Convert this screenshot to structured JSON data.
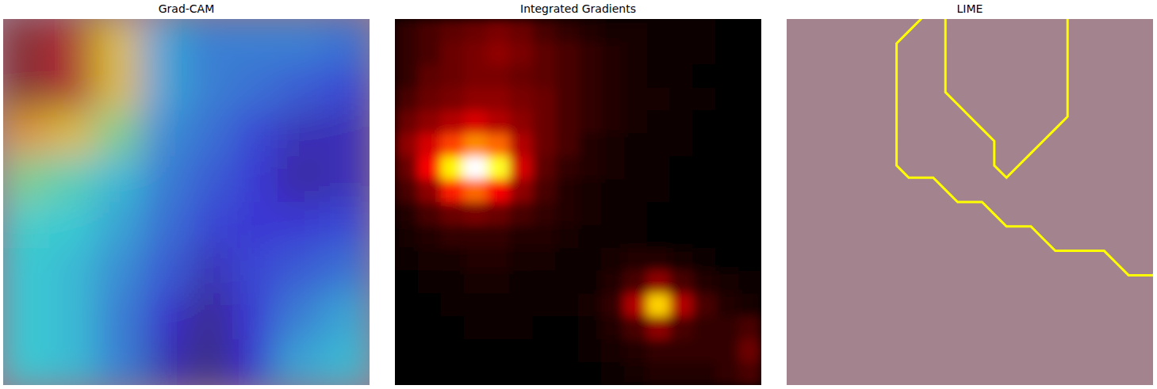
{
  "chart_data": [
    {
      "type": "heatmap",
      "title": "Grad-CAM",
      "color": "jet",
      "tick_labels": false,
      "values": [
        [
          0.95,
          0.9,
          0.65,
          0.35,
          0.3,
          0.3,
          0.3,
          0.28
        ],
        [
          0.95,
          0.9,
          0.65,
          0.35,
          0.3,
          0.28,
          0.25,
          0.22
        ],
        [
          0.7,
          0.65,
          0.5,
          0.32,
          0.28,
          0.22,
          0.15,
          0.15
        ],
        [
          0.5,
          0.45,
          0.38,
          0.3,
          0.25,
          0.2,
          0.12,
          0.15
        ],
        [
          0.42,
          0.4,
          0.35,
          0.28,
          0.22,
          0.2,
          0.2,
          0.22
        ],
        [
          0.4,
          0.38,
          0.32,
          0.25,
          0.15,
          0.22,
          0.25,
          0.28
        ],
        [
          0.4,
          0.38,
          0.3,
          0.18,
          0.1,
          0.2,
          0.3,
          0.35
        ],
        [
          0.4,
          0.38,
          0.3,
          0.15,
          0.08,
          0.18,
          0.35,
          0.38
        ]
      ]
    },
    {
      "type": "heatmap",
      "title": "Integrated Gradients",
      "color": "hot",
      "tick_labels": false,
      "values": [
        [
          0.12,
          0.15,
          0.18,
          0.2,
          0.22,
          0.2,
          0.15,
          0.12,
          0.1,
          0.08,
          0.08,
          0.07,
          0.06,
          0.06,
          0.05,
          0.05
        ],
        [
          0.12,
          0.15,
          0.2,
          0.22,
          0.25,
          0.22,
          0.18,
          0.15,
          0.12,
          0.1,
          0.08,
          0.07,
          0.06,
          0.06,
          0.05,
          0.05
        ],
        [
          0.12,
          0.18,
          0.2,
          0.22,
          0.22,
          0.2,
          0.18,
          0.15,
          0.12,
          0.1,
          0.08,
          0.07,
          0.06,
          0.05,
          0.05,
          0.05
        ],
        [
          0.15,
          0.2,
          0.22,
          0.25,
          0.25,
          0.22,
          0.2,
          0.15,
          0.12,
          0.1,
          0.08,
          0.08,
          0.07,
          0.06,
          0.05,
          0.05
        ],
        [
          0.2,
          0.25,
          0.3,
          0.35,
          0.3,
          0.25,
          0.2,
          0.15,
          0.12,
          0.1,
          0.08,
          0.07,
          0.06,
          0.05,
          0.05,
          0.05
        ],
        [
          0.25,
          0.35,
          0.5,
          0.6,
          0.55,
          0.3,
          0.2,
          0.15,
          0.1,
          0.08,
          0.07,
          0.06,
          0.06,
          0.05,
          0.05,
          0.05
        ],
        [
          0.2,
          0.4,
          0.75,
          1.0,
          0.8,
          0.35,
          0.18,
          0.12,
          0.1,
          0.08,
          0.07,
          0.06,
          0.05,
          0.05,
          0.05,
          0.05
        ],
        [
          0.15,
          0.25,
          0.45,
          0.55,
          0.4,
          0.25,
          0.15,
          0.1,
          0.08,
          0.07,
          0.06,
          0.06,
          0.05,
          0.05,
          0.05,
          0.05
        ],
        [
          0.1,
          0.15,
          0.2,
          0.22,
          0.2,
          0.15,
          0.12,
          0.1,
          0.08,
          0.07,
          0.06,
          0.05,
          0.05,
          0.05,
          0.05,
          0.05
        ],
        [
          0.08,
          0.1,
          0.12,
          0.12,
          0.12,
          0.1,
          0.1,
          0.08,
          0.07,
          0.06,
          0.06,
          0.05,
          0.05,
          0.05,
          0.05,
          0.05
        ],
        [
          0.06,
          0.08,
          0.08,
          0.1,
          0.1,
          0.08,
          0.08,
          0.07,
          0.06,
          0.08,
          0.1,
          0.1,
          0.08,
          0.06,
          0.05,
          0.05
        ],
        [
          0.05,
          0.06,
          0.07,
          0.08,
          0.08,
          0.07,
          0.06,
          0.06,
          0.07,
          0.1,
          0.15,
          0.25,
          0.15,
          0.1,
          0.08,
          0.06
        ],
        [
          0.05,
          0.05,
          0.06,
          0.07,
          0.07,
          0.06,
          0.06,
          0.06,
          0.08,
          0.12,
          0.3,
          0.7,
          0.3,
          0.15,
          0.1,
          0.08
        ],
        [
          0.05,
          0.05,
          0.05,
          0.06,
          0.06,
          0.06,
          0.05,
          0.05,
          0.07,
          0.1,
          0.15,
          0.25,
          0.15,
          0.12,
          0.12,
          0.15
        ],
        [
          0.05,
          0.05,
          0.05,
          0.05,
          0.05,
          0.05,
          0.05,
          0.05,
          0.06,
          0.08,
          0.1,
          0.12,
          0.12,
          0.12,
          0.12,
          0.2
        ],
        [
          0.05,
          0.05,
          0.05,
          0.05,
          0.05,
          0.05,
          0.05,
          0.05,
          0.05,
          0.06,
          0.08,
          0.1,
          0.1,
          0.1,
          0.12,
          0.15
        ]
      ]
    },
    {
      "type": "contour",
      "title": "LIME",
      "color": "yellow",
      "tick_labels": false,
      "values": [
        [
          0,
          0,
          0,
          0,
          0,
          0,
          1,
          0,
          0,
          0,
          0,
          0,
          1,
          1,
          1,
          1
        ],
        [
          0,
          0,
          0,
          0,
          0,
          1,
          1,
          0,
          0,
          0,
          0,
          0,
          1,
          1,
          1,
          1
        ],
        [
          0,
          0,
          0,
          0,
          0,
          1,
          1,
          0,
          0,
          0,
          0,
          0,
          1,
          1,
          1,
          1
        ],
        [
          0,
          0,
          0,
          0,
          0,
          1,
          1,
          0,
          0,
          0,
          0,
          0,
          1,
          1,
          1,
          1
        ],
        [
          0,
          0,
          0,
          0,
          0,
          1,
          1,
          1,
          0,
          0,
          0,
          0,
          1,
          1,
          1,
          1
        ],
        [
          0,
          0,
          0,
          0,
          0,
          1,
          1,
          1,
          1,
          0,
          0,
          1,
          1,
          1,
          1,
          1
        ],
        [
          0,
          0,
          0,
          0,
          0,
          1,
          1,
          1,
          1,
          0,
          1,
          1,
          1,
          1,
          1,
          1
        ],
        [
          0,
          0,
          0,
          0,
          0,
          0,
          0,
          1,
          1,
          1,
          1,
          1,
          1,
          1,
          1,
          1
        ],
        [
          0,
          0,
          0,
          0,
          0,
          0,
          0,
          0,
          0,
          1,
          1,
          1,
          1,
          1,
          1,
          1
        ],
        [
          0,
          0,
          0,
          0,
          0,
          0,
          0,
          0,
          0,
          0,
          0,
          1,
          1,
          1,
          1,
          1
        ],
        [
          0,
          0,
          0,
          0,
          0,
          0,
          0,
          0,
          0,
          0,
          0,
          0,
          0,
          0,
          1,
          1
        ],
        [
          0,
          0,
          0,
          0,
          0,
          0,
          0,
          0,
          0,
          0,
          0,
          0,
          0,
          0,
          0,
          0
        ],
        [
          0,
          0,
          0,
          0,
          0,
          0,
          0,
          0,
          0,
          0,
          0,
          0,
          0,
          0,
          0,
          0
        ],
        [
          0,
          0,
          0,
          0,
          0,
          0,
          0,
          0,
          0,
          0,
          0,
          0,
          0,
          0,
          0,
          0
        ],
        [
          0,
          0,
          0,
          0,
          0,
          0,
          0,
          0,
          0,
          0,
          0,
          0,
          0,
          0,
          0,
          0
        ],
        [
          0,
          0,
          0,
          0,
          0,
          0,
          0,
          0,
          0,
          0,
          0,
          0,
          0,
          0,
          0,
          0
        ]
      ]
    }
  ]
}
